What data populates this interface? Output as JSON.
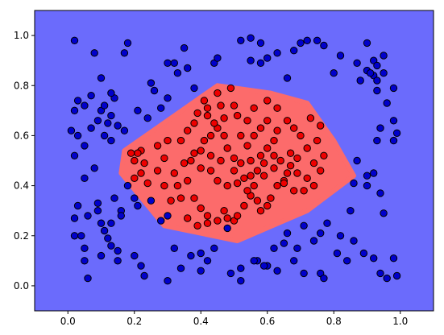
{
  "chart_data": {
    "type": "scatter",
    "title": "",
    "xlabel": "",
    "ylabel": "",
    "xlim": [
      -0.1,
      1.1
    ],
    "ylim": [
      -0.1,
      1.1
    ],
    "grid": false,
    "legend": "none",
    "x_ticks": [
      0.0,
      0.2,
      0.4,
      0.6,
      0.8,
      1.0
    ],
    "y_ticks": [
      0.0,
      0.2,
      0.4,
      0.6,
      0.8,
      1.0
    ],
    "x_tick_labels": [
      "0.0",
      "0.2",
      "0.4",
      "0.6",
      "0.8",
      "1.0"
    ],
    "y_tick_labels": [
      "0.0",
      "0.2",
      "0.4",
      "0.6",
      "0.8",
      "1.0"
    ],
    "background_region_color": "#6b6bfc",
    "decision_region": {
      "color": "#fc6b6b",
      "polygon": [
        [
          0.17,
          0.54
        ],
        [
          0.45,
          0.8
        ],
        [
          0.61,
          0.77
        ],
        [
          0.72,
          0.73
        ],
        [
          0.8,
          0.58
        ],
        [
          0.86,
          0.44
        ],
        [
          0.72,
          0.3
        ],
        [
          0.51,
          0.18
        ],
        [
          0.29,
          0.24
        ],
        [
          0.16,
          0.45
        ]
      ]
    },
    "series": [
      {
        "color": "#0000cc",
        "points": [
          [
            0.02,
            0.98
          ],
          [
            0.08,
            0.93
          ],
          [
            0.17,
            0.93
          ],
          [
            0.18,
            0.97
          ],
          [
            0.3,
            0.75
          ],
          [
            0.26,
            0.78
          ],
          [
            0.33,
            0.85
          ],
          [
            0.35,
            0.95
          ],
          [
            0.52,
            0.98
          ],
          [
            0.55,
            0.9
          ],
          [
            0.58,
            0.97
          ],
          [
            0.68,
            0.94
          ],
          [
            0.7,
            0.97
          ],
          [
            0.72,
            0.98
          ],
          [
            0.75,
            0.98
          ],
          [
            0.82,
            0.92
          ],
          [
            0.87,
            0.89
          ],
          [
            0.9,
            0.97
          ],
          [
            0.92,
            0.9
          ],
          [
            0.95,
            0.92
          ],
          [
            0.88,
            0.82
          ],
          [
            0.9,
            0.86
          ],
          [
            0.92,
            0.84
          ],
          [
            0.93,
            0.82
          ],
          [
            0.95,
            0.85
          ],
          [
            0.98,
            0.79
          ],
          [
            0.98,
            0.66
          ],
          [
            0.96,
            0.73
          ],
          [
            0.94,
            0.63
          ],
          [
            0.99,
            0.61
          ],
          [
            0.98,
            0.58
          ],
          [
            0.93,
            0.58
          ],
          [
            0.9,
            0.44
          ],
          [
            0.9,
            0.4
          ],
          [
            0.87,
            0.5
          ],
          [
            0.86,
            0.41
          ],
          [
            0.92,
            0.45
          ],
          [
            0.94,
            0.37
          ],
          [
            0.95,
            0.29
          ],
          [
            0.85,
            0.3
          ],
          [
            0.86,
            0.18
          ],
          [
            0.82,
            0.2
          ],
          [
            0.78,
            0.25
          ],
          [
            0.71,
            0.24
          ],
          [
            0.69,
            0.15
          ],
          [
            0.66,
            0.21
          ],
          [
            0.65,
            0.17
          ],
          [
            0.62,
            0.15
          ],
          [
            0.6,
            0.08
          ],
          [
            0.57,
            0.1
          ],
          [
            0.52,
            0.07
          ],
          [
            0.52,
            0.02
          ],
          [
            0.49,
            0.05
          ],
          [
            0.42,
            0.1
          ],
          [
            0.4,
            0.06
          ],
          [
            0.34,
            0.07
          ],
          [
            0.3,
            0.02
          ],
          [
            0.22,
            0.08
          ],
          [
            0.23,
            0.04
          ],
          [
            0.2,
            0.12
          ],
          [
            0.15,
            0.1
          ],
          [
            0.15,
            0.14
          ],
          [
            0.13,
            0.16
          ],
          [
            0.1,
            0.12
          ],
          [
            0.06,
            0.03
          ],
          [
            0.05,
            0.1
          ],
          [
            0.05,
            0.15
          ],
          [
            0.02,
            0.2
          ],
          [
            0.02,
            0.27
          ],
          [
            0.03,
            0.32
          ],
          [
            0.06,
            0.28
          ],
          [
            0.09,
            0.33
          ],
          [
            0.09,
            0.3
          ],
          [
            0.1,
            0.25
          ],
          [
            0.11,
            0.22
          ],
          [
            0.12,
            0.19
          ],
          [
            0.13,
            0.25
          ],
          [
            0.14,
            0.35
          ],
          [
            0.16,
            0.3
          ],
          [
            0.16,
            0.28
          ],
          [
            0.18,
            0.4
          ],
          [
            0.2,
            0.35
          ],
          [
            0.21,
            0.32
          ],
          [
            0.25,
            0.34
          ],
          [
            0.28,
            0.26
          ],
          [
            0.3,
            0.28
          ],
          [
            0.32,
            0.15
          ],
          [
            0.37,
            0.12
          ],
          [
            0.4,
            0.13
          ],
          [
            0.44,
            0.15
          ],
          [
            0.48,
            0.23
          ],
          [
            0.56,
            0.1
          ],
          [
            0.59,
            0.08
          ],
          [
            0.63,
            0.06
          ],
          [
            0.68,
            0.1
          ],
          [
            0.71,
            0.05
          ],
          [
            0.76,
            0.05
          ],
          [
            0.77,
            0.03
          ],
          [
            0.74,
            0.18
          ],
          [
            0.76,
            0.21
          ],
          [
            0.81,
            0.13
          ],
          [
            0.84,
            0.1
          ],
          [
            0.89,
            0.13
          ],
          [
            0.92,
            0.11
          ],
          [
            0.94,
            0.05
          ],
          [
            0.96,
            0.03
          ],
          [
            0.98,
            0.11
          ],
          [
            0.99,
            0.04
          ],
          [
            0.01,
            0.62
          ],
          [
            0.03,
            0.6
          ],
          [
            0.05,
            0.56
          ],
          [
            0.02,
            0.7
          ],
          [
            0.03,
            0.74
          ],
          [
            0.05,
            0.72
          ],
          [
            0.07,
            0.63
          ],
          [
            0.07,
            0.76
          ],
          [
            0.09,
            0.66
          ],
          [
            0.1,
            0.7
          ],
          [
            0.11,
            0.72
          ],
          [
            0.12,
            0.65
          ],
          [
            0.13,
            0.68
          ],
          [
            0.11,
            0.6
          ],
          [
            0.13,
            0.58
          ],
          [
            0.15,
            0.64
          ],
          [
            0.17,
            0.62
          ],
          [
            0.1,
            0.83
          ],
          [
            0.14,
            0.75
          ],
          [
            0.13,
            0.77
          ],
          [
            0.02,
            0.52
          ],
          [
            0.05,
            0.43
          ],
          [
            0.08,
            0.47
          ],
          [
            0.04,
            0.2
          ],
          [
            0.21,
            0.7
          ],
          [
            0.24,
            0.67
          ],
          [
            0.28,
            0.71
          ],
          [
            0.25,
            0.81
          ],
          [
            0.38,
            0.79
          ],
          [
            0.44,
            0.89
          ],
          [
            0.45,
            0.91
          ],
          [
            0.55,
            0.99
          ],
          [
            0.63,
            0.93
          ],
          [
            0.3,
            0.89
          ],
          [
            0.32,
            0.89
          ],
          [
            0.36,
            0.87
          ],
          [
            0.58,
            0.89
          ],
          [
            0.6,
            0.91
          ],
          [
            0.66,
            0.83
          ],
          [
            0.77,
            0.96
          ],
          [
            0.8,
            0.85
          ],
          [
            0.91,
            0.85
          ],
          [
            0.93,
            0.88
          ],
          [
            0.93,
            0.78
          ]
        ]
      },
      {
        "color": "#ee0000",
        "points": [
          [
            0.45,
            0.77
          ],
          [
            0.49,
            0.79
          ],
          [
            0.46,
            0.72
          ],
          [
            0.42,
            0.71
          ],
          [
            0.39,
            0.69
          ],
          [
            0.38,
            0.65
          ],
          [
            0.36,
            0.62
          ],
          [
            0.3,
            0.58
          ],
          [
            0.27,
            0.56
          ],
          [
            0.22,
            0.54
          ],
          [
            0.21,
            0.53
          ],
          [
            0.19,
            0.53
          ],
          [
            0.2,
            0.5
          ],
          [
            0.23,
            0.49
          ],
          [
            0.22,
            0.45
          ],
          [
            0.2,
            0.43
          ],
          [
            0.24,
            0.41
          ],
          [
            0.27,
            0.46
          ],
          [
            0.29,
            0.51
          ],
          [
            0.32,
            0.45
          ],
          [
            0.35,
            0.49
          ],
          [
            0.36,
            0.42
          ],
          [
            0.33,
            0.4
          ],
          [
            0.34,
            0.35
          ],
          [
            0.38,
            0.35
          ],
          [
            0.4,
            0.31
          ],
          [
            0.42,
            0.28
          ],
          [
            0.42,
            0.25
          ],
          [
            0.45,
            0.26
          ],
          [
            0.47,
            0.3
          ],
          [
            0.48,
            0.27
          ],
          [
            0.5,
            0.26
          ],
          [
            0.51,
            0.28
          ],
          [
            0.53,
            0.32
          ],
          [
            0.55,
            0.36
          ],
          [
            0.57,
            0.34
          ],
          [
            0.58,
            0.3
          ],
          [
            0.6,
            0.32
          ],
          [
            0.61,
            0.35
          ],
          [
            0.63,
            0.4
          ],
          [
            0.65,
            0.42
          ],
          [
            0.66,
            0.45
          ],
          [
            0.67,
            0.48
          ],
          [
            0.69,
            0.45
          ],
          [
            0.71,
            0.38
          ],
          [
            0.72,
            0.43
          ],
          [
            0.74,
            0.4
          ],
          [
            0.76,
            0.46
          ],
          [
            0.77,
            0.52
          ],
          [
            0.75,
            0.58
          ],
          [
            0.76,
            0.64
          ],
          [
            0.73,
            0.67
          ],
          [
            0.7,
            0.6
          ],
          [
            0.68,
            0.63
          ],
          [
            0.66,
            0.66
          ],
          [
            0.63,
            0.62
          ],
          [
            0.62,
            0.58
          ],
          [
            0.6,
            0.55
          ],
          [
            0.58,
            0.52
          ],
          [
            0.55,
            0.5
          ],
          [
            0.52,
            0.49
          ],
          [
            0.5,
            0.46
          ],
          [
            0.5,
            0.51
          ],
          [
            0.48,
            0.55
          ],
          [
            0.47,
            0.6
          ],
          [
            0.45,
            0.63
          ],
          [
            0.43,
            0.6
          ],
          [
            0.41,
            0.58
          ],
          [
            0.4,
            0.54
          ],
          [
            0.38,
            0.53
          ],
          [
            0.37,
            0.5
          ],
          [
            0.4,
            0.47
          ],
          [
            0.43,
            0.46
          ],
          [
            0.45,
            0.42
          ],
          [
            0.48,
            0.4
          ],
          [
            0.51,
            0.41
          ],
          [
            0.54,
            0.38
          ],
          [
            0.55,
            0.44
          ],
          [
            0.57,
            0.46
          ],
          [
            0.59,
            0.49
          ],
          [
            0.62,
            0.52
          ],
          [
            0.64,
            0.5
          ],
          [
            0.67,
            0.53
          ],
          [
            0.69,
            0.51
          ],
          [
            0.72,
            0.55
          ],
          [
            0.74,
            0.49
          ],
          [
            0.63,
            0.71
          ],
          [
            0.6,
            0.74
          ],
          [
            0.56,
            0.71
          ],
          [
            0.54,
            0.66
          ],
          [
            0.51,
            0.68
          ],
          [
            0.5,
            0.72
          ],
          [
            0.47,
            0.67
          ],
          [
            0.44,
            0.65
          ],
          [
            0.42,
            0.68
          ],
          [
            0.41,
            0.74
          ],
          [
            0.52,
            0.6
          ],
          [
            0.54,
            0.56
          ],
          [
            0.56,
            0.6
          ],
          [
            0.58,
            0.63
          ],
          [
            0.6,
            0.66
          ],
          [
            0.46,
            0.5
          ],
          [
            0.43,
            0.52
          ],
          [
            0.34,
            0.58
          ],
          [
            0.29,
            0.4
          ],
          [
            0.31,
            0.34
          ],
          [
            0.36,
            0.27
          ],
          [
            0.39,
            0.24
          ],
          [
            0.53,
            0.43
          ],
          [
            0.56,
            0.4
          ],
          [
            0.59,
            0.44
          ],
          [
            0.62,
            0.47
          ],
          [
            0.65,
            0.41
          ],
          [
            0.68,
            0.38
          ]
        ]
      }
    ]
  }
}
